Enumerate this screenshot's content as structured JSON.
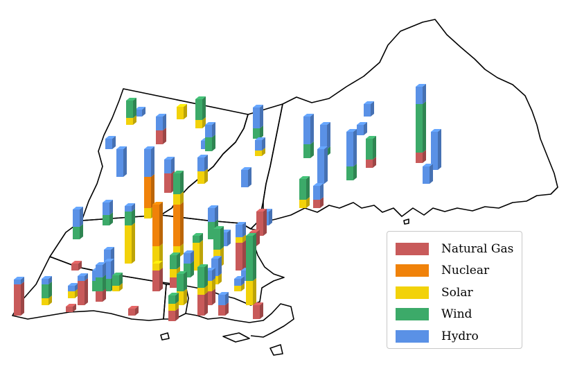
{
  "legend": {
    "items": [
      {
        "label": "Natural Gas",
        "color": "#c85a5a"
      },
      {
        "label": "Nuclear",
        "color": "#f0820a"
      },
      {
        "label": "Solar",
        "color": "#f2d20a"
      },
      {
        "label": "Wind",
        "color": "#3caa69"
      },
      {
        "label": "Hydro",
        "color": "#5a91e6"
      }
    ]
  },
  "sources": [
    "Natural Gas",
    "Nuclear",
    "Solar",
    "Wind",
    "Hydro"
  ]
}
